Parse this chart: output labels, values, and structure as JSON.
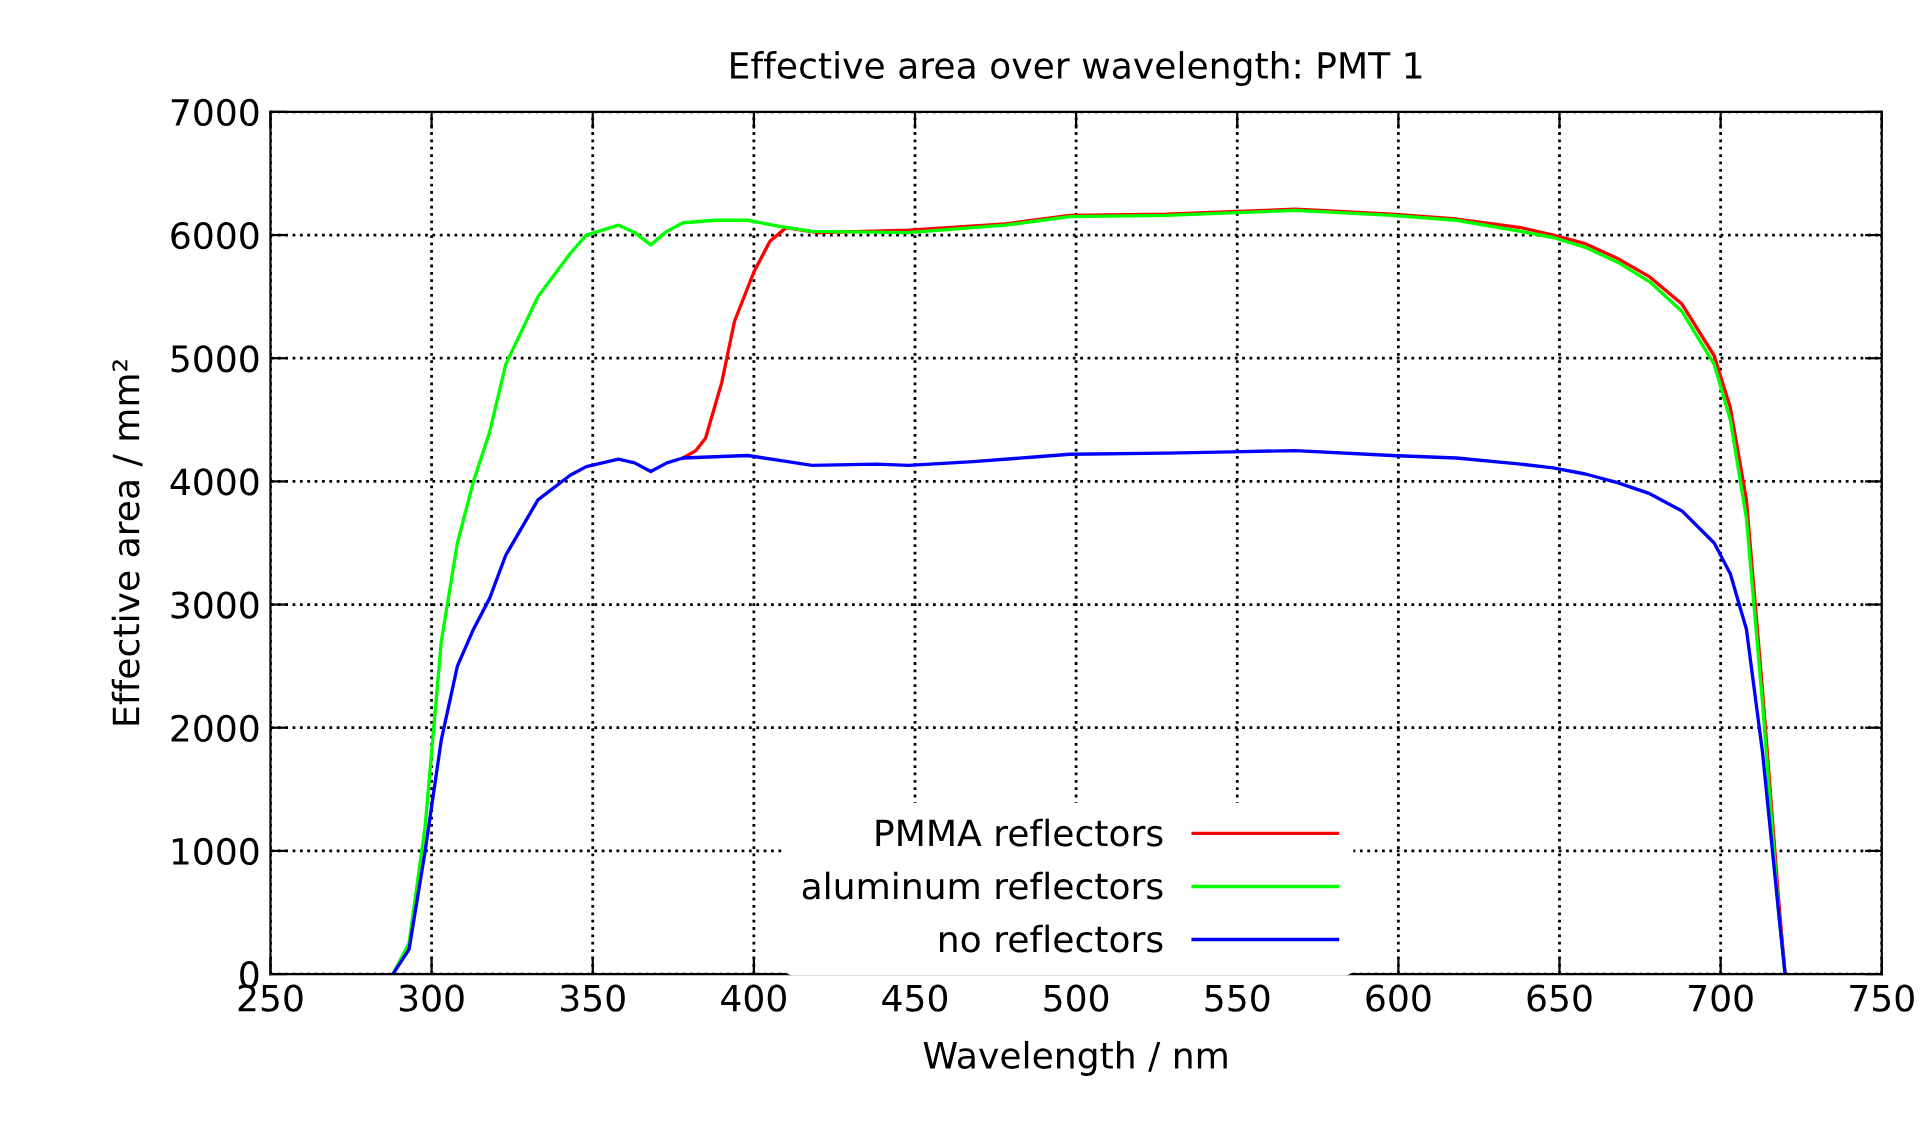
{
  "chart_data": {
    "type": "line",
    "title": "Effective area over wavelength: PMT 1",
    "xlabel": "Wavelength / nm",
    "ylabel": "Effective area / mm²",
    "xlim": [
      250,
      750
    ],
    "xticks": [
      250,
      300,
      350,
      400,
      450,
      500,
      550,
      600,
      650,
      700,
      750
    ],
    "ylim": [
      0,
      7000
    ],
    "yticks": [
      0,
      1000,
      2000,
      3000,
      4000,
      5000,
      6000,
      7000
    ],
    "grid": true,
    "legend": "bottom",
    "series": [
      {
        "name": "PMMA reflectors",
        "color": "#ff0000",
        "x": [
          378,
          382,
          385,
          390,
          394,
          400,
          405,
          410,
          420,
          448,
          478,
          498,
          528,
          548,
          568,
          598,
          618,
          638,
          648,
          658,
          668,
          678,
          688,
          698,
          703,
          708,
          713,
          718,
          720
        ],
        "values": [
          4190,
          4250,
          4350,
          4800,
          5300,
          5700,
          5950,
          6060,
          6020,
          6040,
          6090,
          6160,
          6170,
          6190,
          6210,
          6170,
          6130,
          6060,
          6000,
          5930,
          5810,
          5660,
          5440,
          5020,
          4600,
          3850,
          2300,
          600,
          0
        ]
      },
      {
        "name": "aluminum reflectors",
        "color": "#00ff00",
        "x": [
          288,
          293,
          298,
          303,
          308,
          313,
          318,
          323,
          333,
          343,
          348,
          358,
          363,
          368,
          373,
          378,
          388,
          398,
          408,
          418,
          448,
          478,
          498,
          528,
          548,
          568,
          598,
          618,
          638,
          648,
          658,
          668,
          678,
          688,
          698,
          703,
          708,
          713,
          718,
          720
        ],
        "values": [
          0,
          250,
          1200,
          2700,
          3500,
          4000,
          4400,
          4950,
          5500,
          5850,
          6000,
          6080,
          6020,
          5920,
          6030,
          6100,
          6120,
          6120,
          6070,
          6030,
          6020,
          6080,
          6150,
          6160,
          6180,
          6200,
          6160,
          6120,
          6030,
          5980,
          5900,
          5780,
          5620,
          5380,
          4950,
          4500,
          3700,
          2200,
          500,
          0
        ]
      },
      {
        "name": "no reflectors",
        "color": "#0000ff",
        "x": [
          288,
          293,
          298,
          303,
          308,
          313,
          318,
          323,
          333,
          343,
          348,
          358,
          363,
          368,
          373,
          378,
          388,
          398,
          408,
          418,
          438,
          448,
          468,
          488,
          498,
          528,
          548,
          568,
          598,
          618,
          638,
          648,
          658,
          668,
          678,
          688,
          698,
          703,
          708,
          713,
          718,
          720
        ],
        "values": [
          0,
          200,
          1000,
          1900,
          2500,
          2800,
          3050,
          3400,
          3850,
          4050,
          4120,
          4180,
          4150,
          4080,
          4150,
          4190,
          4200,
          4210,
          4170,
          4130,
          4140,
          4130,
          4160,
          4200,
          4220,
          4230,
          4240,
          4250,
          4210,
          4190,
          4140,
          4110,
          4060,
          3990,
          3900,
          3760,
          3500,
          3250,
          2800,
          1800,
          500,
          0
        ]
      }
    ]
  }
}
